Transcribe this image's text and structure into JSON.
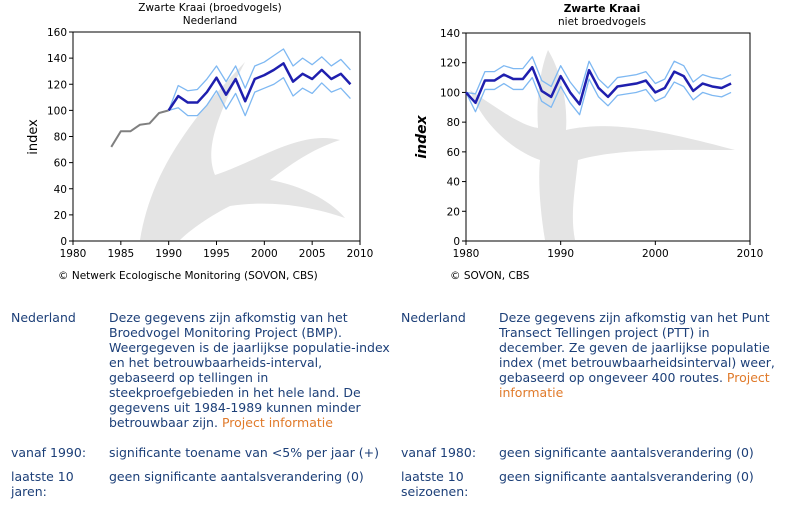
{
  "chart_data": [
    {
      "type": "line",
      "title": "Zwarte Kraai (broedvogels)",
      "subtitle": "Nederland",
      "y_label": "index",
      "footer": "© Netwerk Ecologische Monitoring (SOVON, CBS)",
      "x": [
        1984,
        1985,
        1986,
        1987,
        1988,
        1989,
        1990,
        1991,
        1992,
        1993,
        1994,
        1995,
        1996,
        1997,
        1998,
        1999,
        2000,
        2001,
        2002,
        2003,
        2004,
        2005,
        2006,
        2007,
        2008,
        2009
      ],
      "xlim": [
        1980,
        2010
      ],
      "xticks": [
        1980,
        1985,
        1990,
        1995,
        2000,
        2005,
        2010
      ],
      "ylim": [
        0,
        160
      ],
      "yticks": [
        0,
        20,
        40,
        60,
        80,
        100,
        120,
        140,
        160
      ],
      "grid": false,
      "series": [
        {
          "color": "#808080",
          "values": [
            72,
            84,
            84,
            89,
            90,
            98,
            100,
            null,
            null,
            null,
            null,
            null,
            null,
            null,
            null,
            null,
            null,
            null,
            null,
            null,
            null,
            null,
            null,
            null,
            null,
            null
          ]
        },
        {
          "color": "#7eb8f2",
          "values": [
            null,
            null,
            null,
            null,
            null,
            null,
            100,
            119,
            115,
            116,
            124,
            134,
            122,
            134,
            117,
            134,
            137,
            142,
            147,
            134,
            140,
            135,
            141,
            134,
            139,
            131
          ]
        },
        {
          "color": "#7eb8f2",
          "values": [
            null,
            null,
            null,
            null,
            null,
            null,
            100,
            102,
            96,
            96,
            104,
            115,
            101,
            113,
            96,
            114,
            117,
            120,
            125,
            111,
            117,
            113,
            121,
            114,
            117,
            109
          ]
        },
        {
          "color": "#1f1fae",
          "values": [
            null,
            null,
            null,
            null,
            null,
            null,
            100,
            111,
            106,
            106,
            114,
            125,
            112,
            124,
            107,
            124,
            127,
            131,
            136,
            122,
            128,
            124,
            131,
            124,
            128,
            120
          ]
        }
      ]
    },
    {
      "type": "line",
      "title": "Zwarte Kraai",
      "subtitle": "niet broedvogels",
      "y_label": "index",
      "footer": "© SOVON, CBS",
      "x": [
        1980,
        1981,
        1982,
        1983,
        1984,
        1985,
        1986,
        1987,
        1988,
        1989,
        1990,
        1991,
        1992,
        1993,
        1994,
        1995,
        1996,
        1997,
        1998,
        1999,
        2000,
        2001,
        2002,
        2003,
        2004,
        2005,
        2006,
        2007,
        2008
      ],
      "xlim": [
        1980,
        2010
      ],
      "xticks": [
        1980,
        1990,
        2000,
        2010
      ],
      "ylim": [
        0,
        140
      ],
      "yticks": [
        0,
        20,
        40,
        60,
        80,
        100,
        120,
        140
      ],
      "grid": false,
      "series": [
        {
          "color": "#7eb8f2",
          "values": [
            100,
            99,
            114,
            114,
            118,
            116,
            116,
            124,
            108,
            104,
            118,
            107,
            99,
            121,
            109,
            103,
            110,
            111,
            112,
            114,
            106,
            109,
            121,
            118,
            107,
            112,
            110,
            109,
            112
          ]
        },
        {
          "color": "#7eb8f2",
          "values": [
            100,
            87,
            102,
            102,
            106,
            102,
            102,
            110,
            94,
            90,
            104,
            93,
            85,
            109,
            97,
            91,
            98,
            99,
            100,
            102,
            94,
            97,
            107,
            104,
            95,
            100,
            98,
            97,
            100
          ]
        },
        {
          "color": "#1f1fae",
          "values": [
            100,
            93,
            108,
            108,
            112,
            109,
            109,
            117,
            101,
            97,
            111,
            100,
            92,
            115,
            103,
            97,
            104,
            105,
            106,
            108,
            100,
            103,
            114,
            111,
            101,
            106,
            104,
            103,
            106
          ]
        }
      ]
    }
  ],
  "info": {
    "left": [
      {
        "label": "Nederland",
        "text": "Deze gegevens zijn afkomstig van het Broedvogel Monitoring Project (BMP). Weergegeven is de jaarlijkse populatie-index en het betrouwbaarheids-interval, gebaseerd op tellingen in steekproefgebieden in het hele land. De gegevens uit 1984-1989 kunnen minder betrouwbaar zijn.",
        "link": "Project informatie"
      },
      {
        "label": "vanaf 1990:",
        "text": "significante toename van <5% per jaar (+)"
      },
      {
        "label": "laatste 10 jaren:",
        "text": "geen significante aantalsverandering (0)"
      }
    ],
    "right": [
      {
        "label": "Nederland",
        "text": "Deze gegevens zijn afkomstig van het Punt Transect Tellingen project (PTT) in december. Ze geven de jaarlijkse populatie index (met betrouwbaarheidsinterval) weer, gebaseerd op ongeveer 400 routes.",
        "link": "Project informatie"
      },
      {
        "label": "vanaf 1980:",
        "text": "geen significante aantalsverandering (0)"
      },
      {
        "label": "laatste 10 seizoenen:",
        "text": "geen significante aantalsverandering (0)"
      }
    ]
  }
}
